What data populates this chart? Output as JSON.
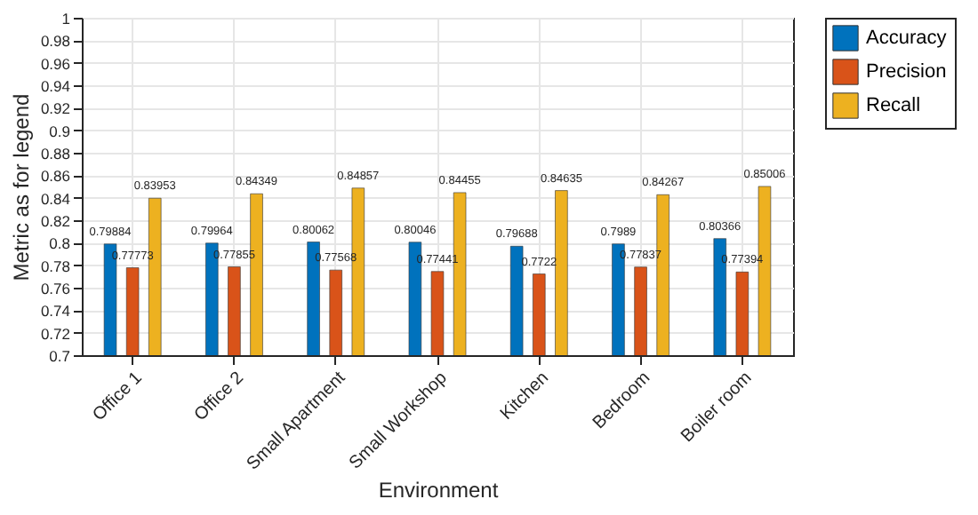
{
  "chart_data": {
    "type": "bar",
    "xlabel": "Environment",
    "ylabel": "Metric as for legend",
    "categories": [
      "Office 1",
      "Office 2",
      "Small Apartment",
      "Small Workshop",
      "Kitchen",
      "Bedroom",
      "Boiler room"
    ],
    "series": [
      {
        "name": "Accuracy",
        "color": "#0072bd",
        "values": [
          0.79884,
          0.79964,
          0.80062,
          0.80046,
          0.79688,
          0.7989,
          0.80366
        ]
      },
      {
        "name": "Precision",
        "color": "#d95319",
        "values": [
          0.77773,
          0.77855,
          0.77568,
          0.77441,
          0.7722,
          0.77837,
          0.77394
        ]
      },
      {
        "name": "Recall",
        "color": "#edb120",
        "values": [
          0.83953,
          0.84349,
          0.84857,
          0.84455,
          0.84635,
          0.84267,
          0.85006
        ]
      }
    ],
    "ylim": [
      0.7,
      1
    ],
    "yticks": [
      0.7,
      0.72,
      0.74,
      0.76,
      0.78,
      0.8,
      0.82,
      0.84,
      0.86,
      0.88,
      0.9,
      0.92,
      0.94,
      0.96,
      0.98,
      1
    ],
    "grid": true,
    "legend": "right",
    "data_labels": true
  }
}
